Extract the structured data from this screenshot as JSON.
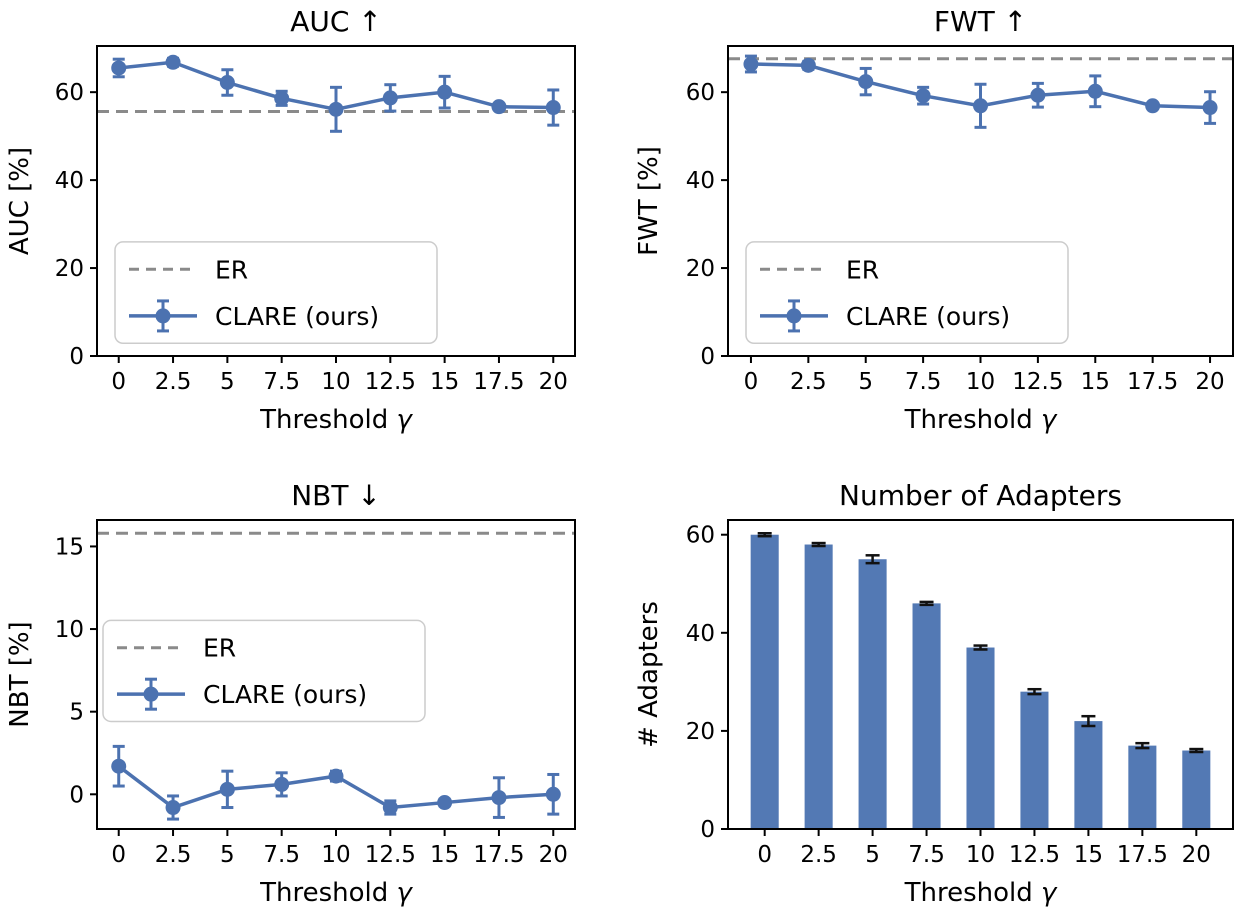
{
  "figure": {
    "series_color": "#4C72B0",
    "bar_color": "#5379B4",
    "er_color": "#8A8A8A",
    "errorbar_cap_color_bars": "#111111",
    "text_color": "#000000",
    "spine_color": "#000000",
    "legend": {
      "er_label": "ER",
      "ours_label": "CLARE (ours)"
    }
  },
  "chart_data": [
    {
      "name": "auc",
      "type": "line",
      "title": "AUC  ↑",
      "xlabel": "Threshold γ",
      "ylabel": "AUC [%]",
      "x": [
        0,
        2.5,
        5,
        7.5,
        10,
        12.5,
        15,
        17.5,
        20
      ],
      "xtick_labels": [
        "0",
        "2.5",
        "5",
        "7.5",
        "10",
        "12.5",
        "15",
        "17.5",
        "20"
      ],
      "series": [
        {
          "name": "CLARE (ours)",
          "values": [
            65.5,
            66.8,
            62.2,
            58.6,
            56.1,
            58.7,
            60.0,
            56.7,
            56.5
          ],
          "errors": [
            2.0,
            0.9,
            2.9,
            1.6,
            5.0,
            3.0,
            3.6,
            0.6,
            4.0
          ]
        },
        {
          "name": "ER",
          "baseline": 55.6
        }
      ],
      "ylim": [
        0,
        70.5
      ],
      "yticks": [
        0,
        20,
        40,
        60
      ],
      "grid": false,
      "legend_position": "lower-left",
      "legend_entries": [
        "ER",
        "CLARE (ours)"
      ]
    },
    {
      "name": "fwt",
      "type": "line",
      "title": "FWT  ↑",
      "xlabel": "Threshold γ",
      "ylabel": "FWT [%]",
      "x": [
        0,
        2.5,
        5,
        7.5,
        10,
        12.5,
        15,
        17.5,
        20
      ],
      "xtick_labels": [
        "0",
        "2.5",
        "5",
        "7.5",
        "10",
        "12.5",
        "15",
        "17.5",
        "20"
      ],
      "series": [
        {
          "name": "CLARE (ours)",
          "values": [
            66.4,
            66.1,
            62.4,
            59.2,
            56.9,
            59.3,
            60.2,
            56.9,
            56.5
          ],
          "errors": [
            1.8,
            0.9,
            3.0,
            1.9,
            4.9,
            2.7,
            3.5,
            0.6,
            3.6
          ]
        },
        {
          "name": "ER",
          "baseline": 67.6
        }
      ],
      "ylim": [
        0,
        70.5
      ],
      "yticks": [
        0,
        20,
        40,
        60
      ],
      "grid": false,
      "legend_position": "lower-left",
      "legend_entries": [
        "ER",
        "CLARE (ours)"
      ]
    },
    {
      "name": "nbt",
      "type": "line",
      "title": "NBT  ↓",
      "xlabel": "Threshold γ",
      "ylabel": "NBT [%]",
      "x": [
        0,
        2.5,
        5,
        7.5,
        10,
        12.5,
        15,
        17.5,
        20
      ],
      "xtick_labels": [
        "0",
        "2.5",
        "5",
        "7.5",
        "10",
        "12.5",
        "15",
        "17.5",
        "20"
      ],
      "series": [
        {
          "name": "CLARE (ours)",
          "values": [
            1.7,
            -0.8,
            0.3,
            0.6,
            1.1,
            -0.8,
            -0.5,
            -0.2,
            0.0
          ],
          "errors": [
            1.2,
            0.7,
            1.1,
            0.7,
            0.3,
            0.4,
            0.2,
            1.2,
            1.2
          ]
        },
        {
          "name": "ER",
          "baseline": 15.8
        }
      ],
      "ylim": [
        -2.1,
        16.6
      ],
      "yticks": [
        0,
        5,
        10,
        15
      ],
      "grid": false,
      "legend_position": "center-left",
      "legend_entries": [
        "ER",
        "CLARE (ours)"
      ]
    },
    {
      "name": "adapters",
      "type": "bar",
      "title": "Number of Adapters",
      "xlabel": "Threshold γ",
      "ylabel": "# Adapters",
      "x": [
        0,
        2.5,
        5,
        7.5,
        10,
        12.5,
        15,
        17.5,
        20
      ],
      "xtick_labels": [
        "0",
        "2.5",
        "5",
        "7.5",
        "10",
        "12.5",
        "15",
        "17.5",
        "20"
      ],
      "series": [
        {
          "name": "CLARE (ours)",
          "values": [
            60,
            58,
            55,
            46,
            37,
            28,
            22,
            17,
            16
          ],
          "errors": [
            0.3,
            0.3,
            0.8,
            0.3,
            0.4,
            0.5,
            1.0,
            0.5,
            0.3
          ]
        }
      ],
      "ylim": [
        0,
        63
      ],
      "yticks": [
        0,
        20,
        40,
        60
      ],
      "grid": false,
      "legend_position": null,
      "legend_entries": []
    }
  ]
}
